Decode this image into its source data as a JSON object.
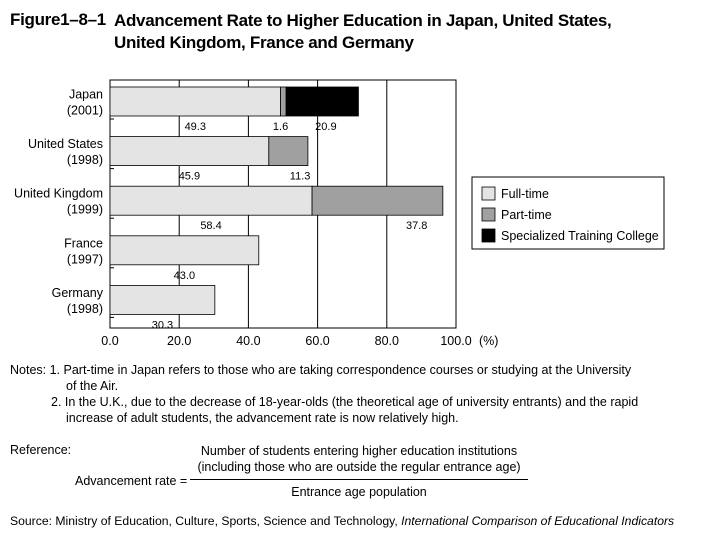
{
  "figure": {
    "number": "Figure1–8–1",
    "title": "Advancement Rate to Higher Education in Japan, United States, United Kingdom, France and Germany"
  },
  "chart_data": {
    "type": "bar",
    "orientation": "horizontal",
    "stacked": true,
    "categories": [
      {
        "name": "Japan",
        "year": "(2001)"
      },
      {
        "name": "United States",
        "year": "(1998)"
      },
      {
        "name": "United Kingdom",
        "year": "(1999)"
      },
      {
        "name": "France",
        "year": "(1997)"
      },
      {
        "name": "Germany",
        "year": "(1998)"
      }
    ],
    "series": [
      {
        "name": "Full-time",
        "color": "#e4e4e4",
        "values": [
          49.3,
          45.9,
          58.4,
          43.0,
          30.3
        ],
        "labels": [
          "49.3",
          "45.9",
          "58.4",
          "43.0",
          "30.3"
        ]
      },
      {
        "name": "Part-time",
        "color": "#a0a0a0",
        "values": [
          1.6,
          11.3,
          37.8,
          0,
          0
        ],
        "labels": [
          "1.6",
          "11.3",
          "37.8",
          "",
          ""
        ]
      },
      {
        "name": "Specialized Training College",
        "color": "#000000",
        "values": [
          20.9,
          0,
          0,
          0,
          0
        ],
        "labels": [
          "20.9",
          "",
          "",
          "",
          ""
        ]
      }
    ],
    "xlim": [
      0,
      100
    ],
    "xticks": [
      "0.0",
      "20.0",
      "40.0",
      "60.0",
      "80.0",
      "100.0"
    ],
    "xunit": "(%)",
    "grid": true,
    "legend_position": "right"
  },
  "notes": {
    "line1": "Notes: 1. Part-time in Japan refers to those who are taking correspondence courses or studying at the University",
    "line2": "of the Air.",
    "line3": "2. In the U.K., due to the decrease of 18-year-olds (the theoretical age of university entrants) and the rapid",
    "line4": "increase of adult students, the advancement rate is now relatively high."
  },
  "reference": {
    "label": "Reference:",
    "lhs": "Advancement rate =",
    "numerator_line1": "Number of students entering higher education institutions",
    "numerator_line2": "(including those who are outside the regular entrance age)",
    "denominator": "Entrance age population"
  },
  "source": {
    "prefix": "Source: Ministry of Education, Culture, Sports, Science and Technology, ",
    "publication": "International Comparison of Educational Indicators"
  }
}
